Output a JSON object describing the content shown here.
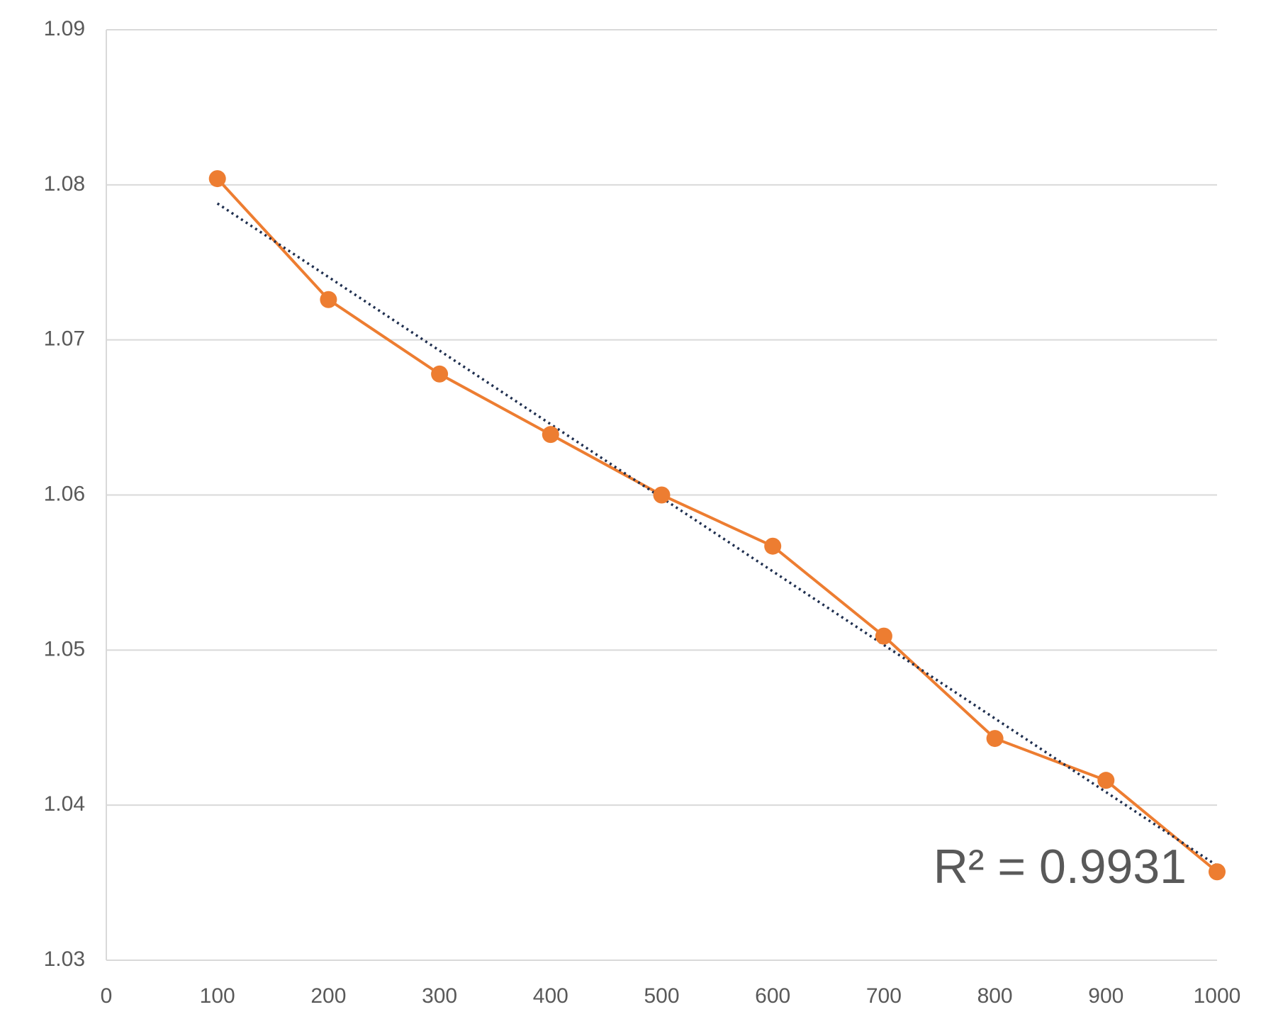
{
  "chart_data": {
    "type": "line",
    "x": [
      100,
      200,
      300,
      400,
      500,
      600,
      700,
      800,
      900,
      1000
    ],
    "series": [
      {
        "color": "#ed7d31",
        "values": [
          1.0804,
          1.0726,
          1.0678,
          1.0639,
          1.06,
          1.0567,
          1.0509,
          1.0443,
          1.0416,
          1.0357
        ]
      }
    ],
    "trendline": {
      "x": [
        100,
        1000
      ],
      "values": [
        1.0788,
        1.0361
      ],
      "color": "#1f2f4f"
    },
    "annotation": "R² = 0.9931",
    "xlim": [
      0,
      1000
    ],
    "xticks": [
      0,
      100,
      200,
      300,
      400,
      500,
      600,
      700,
      800,
      900,
      1000
    ],
    "ylim": [
      1.03,
      1.09
    ],
    "yticks": [
      1.03,
      1.04,
      1.05,
      1.06,
      1.07,
      1.08,
      1.09
    ],
    "grid": true
  }
}
